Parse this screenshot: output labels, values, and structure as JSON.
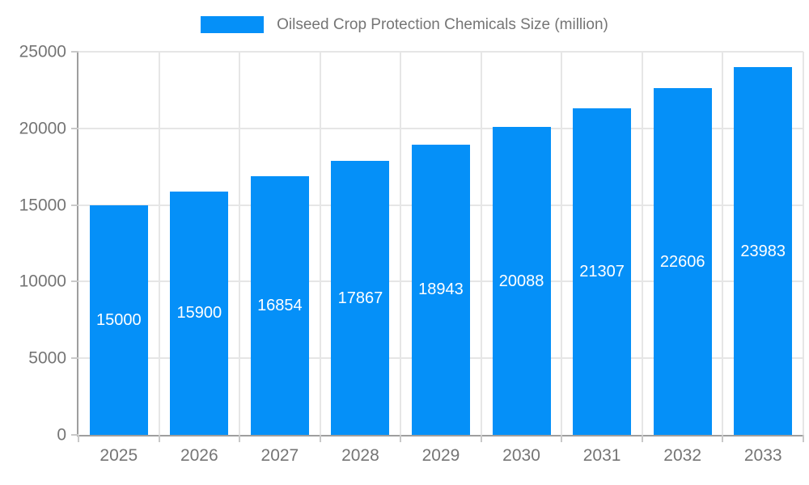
{
  "chart_data": {
    "type": "bar",
    "title": "Oilseed Crop Protection Chemicals Size (million)",
    "categories": [
      "2025",
      "2026",
      "2027",
      "2028",
      "2029",
      "2030",
      "2031",
      "2032",
      "2033"
    ],
    "values": [
      15000,
      15900,
      16854,
      17867,
      18943,
      20088,
      21307,
      22606,
      23983
    ],
    "xlabel": "",
    "ylabel": "",
    "ylim": [
      0,
      25000
    ],
    "yticks": [
      0,
      5000,
      10000,
      15000,
      20000,
      25000
    ],
    "grid": true,
    "legend_position": "top-center",
    "colors": {
      "bar": "#0590f8",
      "value_label": "#ffffff",
      "axis_line": "#9e9e9e",
      "gridline": "#e6e6e6",
      "tick": "#c9c9c9",
      "axis_text": "#757575"
    }
  }
}
